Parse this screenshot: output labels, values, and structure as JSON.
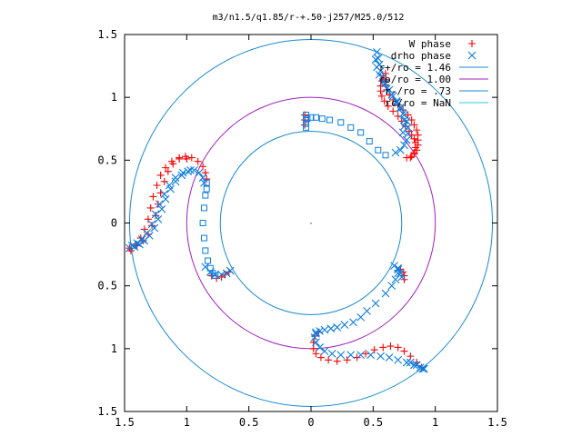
{
  "chart_data": {
    "type": "scatter",
    "title": "m3/n1.5/q1.85/r-+.50-j257/M25.0/512",
    "xlabel": "",
    "ylabel": "",
    "xlim": [
      -1.5,
      1.5
    ],
    "ylim": [
      -1.5,
      1.5
    ],
    "x_ticks": [
      {
        "value": -1.5,
        "label": "1.5"
      },
      {
        "value": -1.0,
        "label": "1"
      },
      {
        "value": -0.5,
        "label": "0.5"
      },
      {
        "value": 0.0,
        "label": "0"
      },
      {
        "value": 0.5,
        "label": "0.5"
      },
      {
        "value": 1.0,
        "label": "1"
      },
      {
        "value": 1.5,
        "label": "1.5"
      }
    ],
    "y_ticks": [
      {
        "value": 1.5,
        "label": "1.5"
      },
      {
        "value": 1.0,
        "label": "1"
      },
      {
        "value": 0.5,
        "label": "0.5"
      },
      {
        "value": 0.0,
        "label": "0"
      },
      {
        "value": -0.5,
        "label": "0.5"
      },
      {
        "value": -1.0,
        "label": "1"
      },
      {
        "value": -1.5,
        "label": "1.5"
      }
    ],
    "grid": false,
    "legend_position": "top-right",
    "series": [
      {
        "name": "W phase",
        "marker": "plus",
        "color": "#ff0000",
        "points": [
          [
            0.58,
            1.17
          ],
          [
            0.57,
            1.13
          ],
          [
            0.56,
            1.09
          ],
          [
            0.56,
            1.05
          ],
          [
            0.57,
            1.01
          ],
          [
            0.59,
            0.97
          ],
          [
            0.62,
            0.93
          ],
          [
            0.66,
            0.89
          ],
          [
            0.7,
            0.85
          ],
          [
            0.73,
            0.81
          ],
          [
            0.76,
            0.77
          ],
          [
            0.79,
            0.73
          ],
          [
            0.81,
            0.7
          ],
          [
            0.83,
            0.67
          ],
          [
            0.84,
            0.64
          ],
          [
            0.84,
            0.6
          ],
          [
            0.83,
            0.56
          ],
          [
            0.81,
            0.53
          ],
          [
            0.6,
            1.19
          ],
          [
            0.6,
            1.14
          ],
          [
            0.6,
            1.1
          ],
          [
            0.61,
            1.06
          ],
          [
            0.63,
            1.02
          ],
          [
            0.66,
            0.98
          ],
          [
            0.7,
            0.94
          ],
          [
            0.74,
            0.9
          ],
          [
            0.78,
            0.86
          ],
          [
            0.81,
            0.82
          ],
          [
            0.83,
            0.78
          ],
          [
            0.85,
            0.74
          ],
          [
            0.86,
            0.7
          ],
          [
            0.86,
            0.66
          ],
          [
            0.86,
            0.62
          ],
          [
            0.85,
            0.58
          ],
          [
            0.83,
            0.55
          ],
          [
            0.8,
            0.52
          ],
          [
            0.77,
            0.52
          ],
          [
            -1.45,
            -0.22
          ],
          [
            -1.4,
            -0.18
          ],
          [
            -1.35,
            -0.14
          ],
          [
            -1.31,
            -0.09
          ],
          [
            -1.28,
            -0.02
          ],
          [
            -1.25,
            0.06
          ],
          [
            -1.23,
            0.15
          ],
          [
            -1.21,
            0.24
          ],
          [
            -1.18,
            0.33
          ],
          [
            -1.15,
            0.41
          ],
          [
            -1.11,
            0.47
          ],
          [
            -1.06,
            0.51
          ],
          [
            -1.01,
            0.53
          ],
          [
            -0.96,
            0.52
          ],
          [
            -0.91,
            0.49
          ],
          [
            -0.87,
            0.45
          ],
          [
            -0.85,
            0.4
          ],
          [
            -0.84,
            0.35
          ],
          [
            -1.46,
            -0.2
          ],
          [
            -1.41,
            -0.17
          ],
          [
            -1.37,
            -0.12
          ],
          [
            -1.34,
            -0.05
          ],
          [
            -1.31,
            0.03
          ],
          [
            -1.29,
            0.12
          ],
          [
            -1.27,
            0.21
          ],
          [
            -1.24,
            0.3
          ],
          [
            -1.21,
            0.38
          ],
          [
            -1.17,
            0.44
          ],
          [
            -1.12,
            0.49
          ],
          [
            -1.06,
            0.52
          ],
          [
            -1.0,
            0.51
          ],
          [
            -0.8,
            -0.42
          ],
          [
            -0.76,
            -0.44
          ],
          [
            -0.72,
            -0.43
          ],
          [
            -0.69,
            -0.41
          ],
          [
            -0.66,
            -0.39
          ],
          [
            0.06,
            -0.87
          ],
          [
            0.03,
            -0.9
          ],
          [
            0.02,
            -0.95
          ],
          [
            0.02,
            -1.0
          ],
          [
            0.04,
            -1.04
          ],
          [
            0.08,
            -1.07
          ],
          [
            0.14,
            -1.09
          ],
          [
            0.21,
            -1.1
          ],
          [
            0.29,
            -1.09
          ],
          [
            0.37,
            -1.07
          ],
          [
            0.44,
            -1.04
          ],
          [
            0.51,
            -1.01
          ],
          [
            0.58,
            -0.99
          ],
          [
            0.64,
            -0.98
          ],
          [
            0.7,
            -0.99
          ],
          [
            0.75,
            -1.02
          ],
          [
            0.8,
            -1.06
          ],
          [
            0.85,
            -1.11
          ],
          [
            0.89,
            -1.15
          ],
          [
            0.72,
            -0.37
          ],
          [
            0.74,
            -0.39
          ],
          [
            0.75,
            -0.42
          ],
          [
            0.75,
            -0.45
          ],
          [
            -0.05,
            0.86
          ],
          [
            -0.05,
            0.82
          ],
          [
            -0.05,
            0.78
          ]
        ]
      },
      {
        "name": "drho phase",
        "marker": "cross",
        "color": "#0a7de0",
        "points": [
          [
            0.53,
            1.36
          ],
          [
            0.54,
            1.31
          ],
          [
            0.55,
            1.26
          ],
          [
            0.56,
            1.21
          ],
          [
            0.58,
            1.16
          ],
          [
            0.6,
            1.11
          ],
          [
            0.63,
            1.06
          ],
          [
            0.66,
            1.01
          ],
          [
            0.69,
            0.96
          ],
          [
            0.72,
            0.91
          ],
          [
            0.75,
            0.86
          ],
          [
            0.77,
            0.81
          ],
          [
            0.78,
            0.76
          ],
          [
            0.78,
            0.71
          ],
          [
            0.77,
            0.66
          ],
          [
            0.75,
            0.62
          ],
          [
            0.72,
            0.58
          ],
          [
            0.68,
            0.56
          ],
          [
            0.52,
            1.3
          ],
          [
            0.53,
            1.24
          ],
          [
            0.55,
            1.18
          ],
          [
            0.58,
            1.12
          ],
          [
            0.61,
            1.07
          ],
          [
            0.65,
            1.02
          ],
          [
            0.69,
            0.97
          ],
          [
            0.72,
            0.92
          ],
          [
            0.74,
            0.87
          ],
          [
            0.75,
            0.82
          ],
          [
            0.75,
            0.77
          ],
          [
            0.74,
            0.72
          ],
          [
            -1.46,
            -0.2
          ],
          [
            -1.42,
            -0.19
          ],
          [
            -1.38,
            -0.17
          ],
          [
            -1.34,
            -0.14
          ],
          [
            -1.3,
            -0.1
          ],
          [
            -1.26,
            -0.04
          ],
          [
            -1.23,
            0.03
          ],
          [
            -1.2,
            0.11
          ],
          [
            -1.17,
            0.19
          ],
          [
            -1.13,
            0.27
          ],
          [
            -1.09,
            0.33
          ],
          [
            -1.04,
            0.38
          ],
          [
            -0.99,
            0.41
          ],
          [
            -0.94,
            0.42
          ],
          [
            -0.9,
            0.4
          ],
          [
            -0.87,
            0.36
          ],
          [
            -0.86,
            0.32
          ],
          [
            -1.44,
            -0.18
          ],
          [
            -1.4,
            -0.16
          ],
          [
            -1.36,
            -0.13
          ],
          [
            -1.32,
            -0.08
          ],
          [
            -1.28,
            -0.01
          ],
          [
            -1.25,
            0.07
          ],
          [
            -1.22,
            0.15
          ],
          [
            -1.18,
            0.23
          ],
          [
            -1.14,
            0.3
          ],
          [
            -1.09,
            0.36
          ],
          [
            -1.03,
            0.4
          ],
          [
            -0.97,
            0.42
          ],
          [
            -0.85,
            -0.35
          ],
          [
            -0.81,
            -0.39
          ],
          [
            -0.77,
            -0.41
          ],
          [
            -0.72,
            -0.41
          ],
          [
            -0.68,
            -0.4
          ],
          [
            -0.65,
            -0.38
          ],
          [
            0.04,
            -0.87
          ],
          [
            0.03,
            -0.91
          ],
          [
            0.04,
            -0.95
          ],
          [
            0.07,
            -0.99
          ],
          [
            0.11,
            -1.02
          ],
          [
            0.17,
            -1.04
          ],
          [
            0.24,
            -1.05
          ],
          [
            0.32,
            -1.05
          ],
          [
            0.4,
            -1.05
          ],
          [
            0.48,
            -1.05
          ],
          [
            0.56,
            -1.06
          ],
          [
            0.63,
            -1.07
          ],
          [
            0.7,
            -1.09
          ],
          [
            0.77,
            -1.11
          ],
          [
            0.83,
            -1.13
          ],
          [
            0.88,
            -1.15
          ],
          [
            0.91,
            -1.16
          ],
          [
            0.8,
            -1.11
          ],
          [
            0.85,
            -1.13
          ],
          [
            0.9,
            -1.16
          ],
          [
            0.04,
            -0.88
          ],
          [
            0.07,
            -0.86
          ],
          [
            0.11,
            -0.85
          ],
          [
            0.16,
            -0.84
          ],
          [
            0.21,
            -0.83
          ],
          [
            0.27,
            -0.81
          ],
          [
            0.34,
            -0.79
          ],
          [
            0.4,
            -0.75
          ],
          [
            0.45,
            -0.7
          ],
          [
            0.52,
            -0.64
          ],
          [
            0.6,
            -0.56
          ],
          [
            0.65,
            -0.5
          ],
          [
            0.68,
            -0.45
          ],
          [
            0.7,
            -0.4
          ],
          [
            0.7,
            -0.36
          ],
          [
            0.67,
            -0.34
          ],
          [
            0.7,
            -0.37
          ],
          [
            0.72,
            -0.4
          ],
          [
            0.73,
            -0.43
          ]
        ]
      },
      {
        "name": "drho phase",
        "marker": "open-square",
        "color": "#0a7de0",
        "points": [
          [
            -0.03,
            0.83
          ],
          [
            0.0,
            0.84
          ],
          [
            0.04,
            0.84
          ],
          [
            0.09,
            0.83
          ],
          [
            0.15,
            0.82
          ],
          [
            0.24,
            0.8
          ],
          [
            0.32,
            0.76
          ],
          [
            0.4,
            0.72
          ],
          [
            0.47,
            0.65
          ],
          [
            0.54,
            0.58
          ],
          [
            0.6,
            0.54
          ],
          [
            -0.04,
            0.76
          ],
          [
            -0.04,
            0.79
          ],
          [
            -0.04,
            0.82
          ],
          [
            -0.04,
            0.86
          ],
          [
            -0.84,
            0.32
          ],
          [
            -0.84,
            0.27
          ],
          [
            -0.85,
            0.22
          ],
          [
            -0.86,
            0.12
          ],
          [
            -0.87,
            0.0
          ],
          [
            -0.86,
            -0.12
          ],
          [
            -0.85,
            -0.22
          ],
          [
            -0.83,
            -0.3
          ],
          [
            -0.81,
            -0.36
          ],
          [
            -0.79,
            -0.4
          ],
          [
            -0.77,
            -0.42
          ]
        ]
      }
    ],
    "legend": [
      {
        "label": "W phase",
        "marker": "plus",
        "color": "#ff0000"
      },
      {
        "label": "drho phase",
        "marker": "cross",
        "color": "#0a7de0"
      },
      {
        "label": "r+/ro = 1.46",
        "line": true,
        "color": "#1a8ad0",
        "radius": 1.46
      },
      {
        "label": "ro/ro = 1.00",
        "line": true,
        "color": "#a020c0",
        "radius": 1.0
      },
      {
        "label": "r-/ro = .73",
        "line": true,
        "color": "#1a8ad0",
        "radius": 0.73
      },
      {
        "label": "rc/ro = NaN",
        "line": true,
        "color": "#30c8d8",
        "radius": null
      }
    ],
    "annotation": {
      "label": "·",
      "x": 0,
      "y": 0
    }
  }
}
